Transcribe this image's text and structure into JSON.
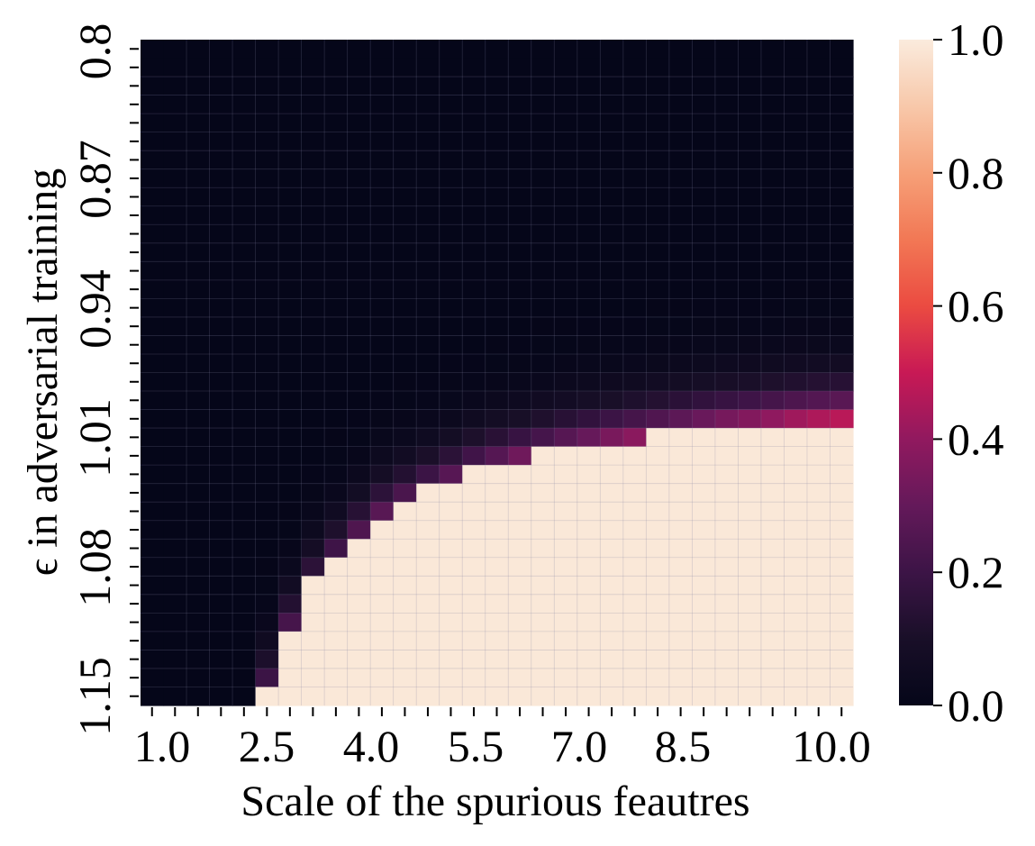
{
  "chart_data": {
    "type": "heatmap",
    "title": "",
    "xlabel": "Scale of the spurious feautres",
    "ylabel": "ϵ in adversarial training",
    "x_tick_labels": [
      "1.0",
      "2.5",
      "4.0",
      "5.5",
      "7.0",
      "8.5",
      "10.0"
    ],
    "y_tick_labels": [
      "0.8",
      "0.87",
      "0.94",
      "1.01",
      "1.08",
      "1.15"
    ],
    "colorbar_tick_labels": [
      "0.0",
      "0.2",
      "0.4",
      "0.6",
      "0.8",
      "1.0"
    ],
    "x_range": [
      1.0,
      10.0
    ],
    "y_range": [
      0.8,
      1.15
    ],
    "value_range": [
      0.0,
      1.0
    ],
    "colormap": "rocket",
    "grid": true,
    "n_cols": 31,
    "n_rows": 36,
    "transition_boundary": {
      "description_points_x": [
        2.5,
        2.8,
        3.1,
        3.4,
        3.7,
        4.0,
        4.6,
        5.2,
        5.8,
        6.4,
        7.0,
        7.6,
        8.2,
        8.8,
        9.4,
        10.0
      ],
      "description_points_y": [
        1.15,
        1.115,
        1.09,
        1.075,
        1.062,
        1.05,
        1.037,
        1.027,
        1.02,
        1.015,
        1.011,
        1.008,
        1.005,
        1.003,
        1.001,
        1.0
      ]
    }
  }
}
